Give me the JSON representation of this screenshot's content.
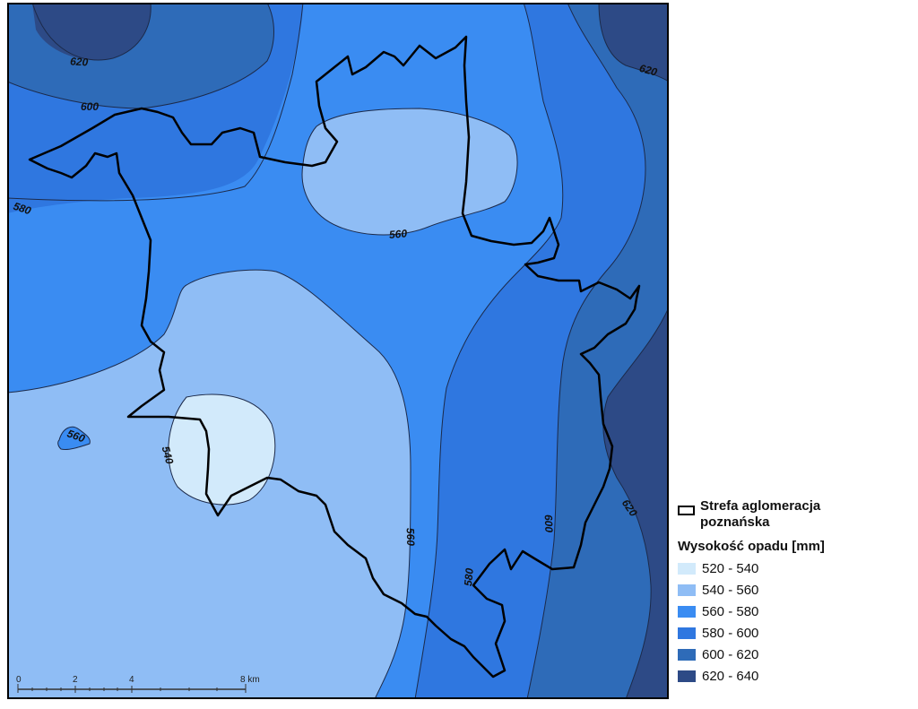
{
  "map": {
    "palette": {
      "c520_540": "#d2eafb",
      "c540_560": "#8fbdf5",
      "c560_580": "#3a8cf2",
      "c580_600": "#2f77e0",
      "c600_620": "#2e6bb8",
      "c620_640": "#2d4a86",
      "contour": "#1c2a4a",
      "boundary": "#000000"
    },
    "contour_labels": [
      "620",
      "620",
      "600",
      "580",
      "560",
      "560",
      "540",
      "560",
      "580",
      "600",
      "620"
    ]
  },
  "legend": {
    "boundary_label": "Strefa aglomeracja poznańska",
    "title": "Wysokość opadu [mm]",
    "classes": [
      {
        "label": "520 - 540",
        "color": "#d2eafb"
      },
      {
        "label": "540 - 560",
        "color": "#8fbdf5"
      },
      {
        "label": "560 - 580",
        "color": "#3a8cf2"
      },
      {
        "label": "580 - 600",
        "color": "#2f77e0"
      },
      {
        "label": "600 - 620",
        "color": "#2e6bb8"
      },
      {
        "label": "620 - 640",
        "color": "#2d4a86"
      }
    ]
  },
  "scale_bar": {
    "ticks": [
      "0",
      "2",
      "4",
      "8 km"
    ]
  }
}
